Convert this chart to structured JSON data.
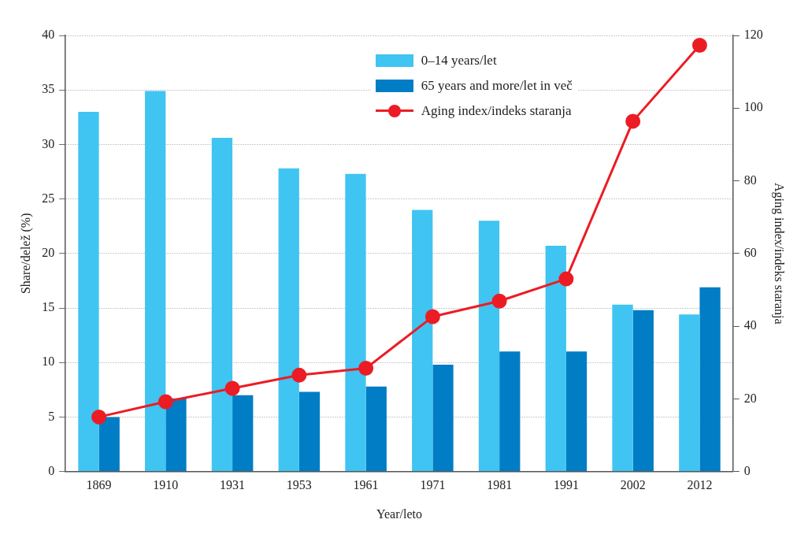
{
  "chart_data": {
    "type": "bar",
    "xlabel": "Year/leto",
    "ylabel": "Share/delež (%)",
    "y2label": "Aging index/indeks staranja",
    "categories": [
      "1869",
      "1910",
      "1931",
      "1953",
      "1961",
      "1971",
      "1981",
      "1991",
      "2002",
      "2012"
    ],
    "series": [
      {
        "name": "0–14 years/let",
        "color": "#40c4f2",
        "values": [
          33.0,
          34.9,
          30.6,
          27.8,
          27.3,
          24.0,
          23.0,
          20.7,
          15.3,
          14.4
        ]
      },
      {
        "name": "65 years and more/let in več",
        "color": "#007dc5",
        "values": [
          5.0,
          6.7,
          7.0,
          7.3,
          7.8,
          9.8,
          11.0,
          11.0,
          14.8,
          16.9
        ]
      },
      {
        "name": "Aging index/indeks staranja",
        "type": "line",
        "axis": "y2",
        "color": "#ec1c24",
        "values": [
          15.0,
          19.2,
          22.9,
          26.5,
          28.4,
          42.6,
          46.9,
          53.0,
          96.4,
          117.3
        ]
      }
    ],
    "ylim": [
      0,
      40
    ],
    "yticks": [
      0,
      5,
      10,
      15,
      20,
      25,
      30,
      35,
      40
    ],
    "y2lim": [
      0,
      120
    ],
    "y2ticks": [
      0,
      20,
      40,
      60,
      80,
      100,
      120
    ],
    "grid": "y",
    "legend": "top right",
    "marker": "circle",
    "line_style": "solid"
  }
}
